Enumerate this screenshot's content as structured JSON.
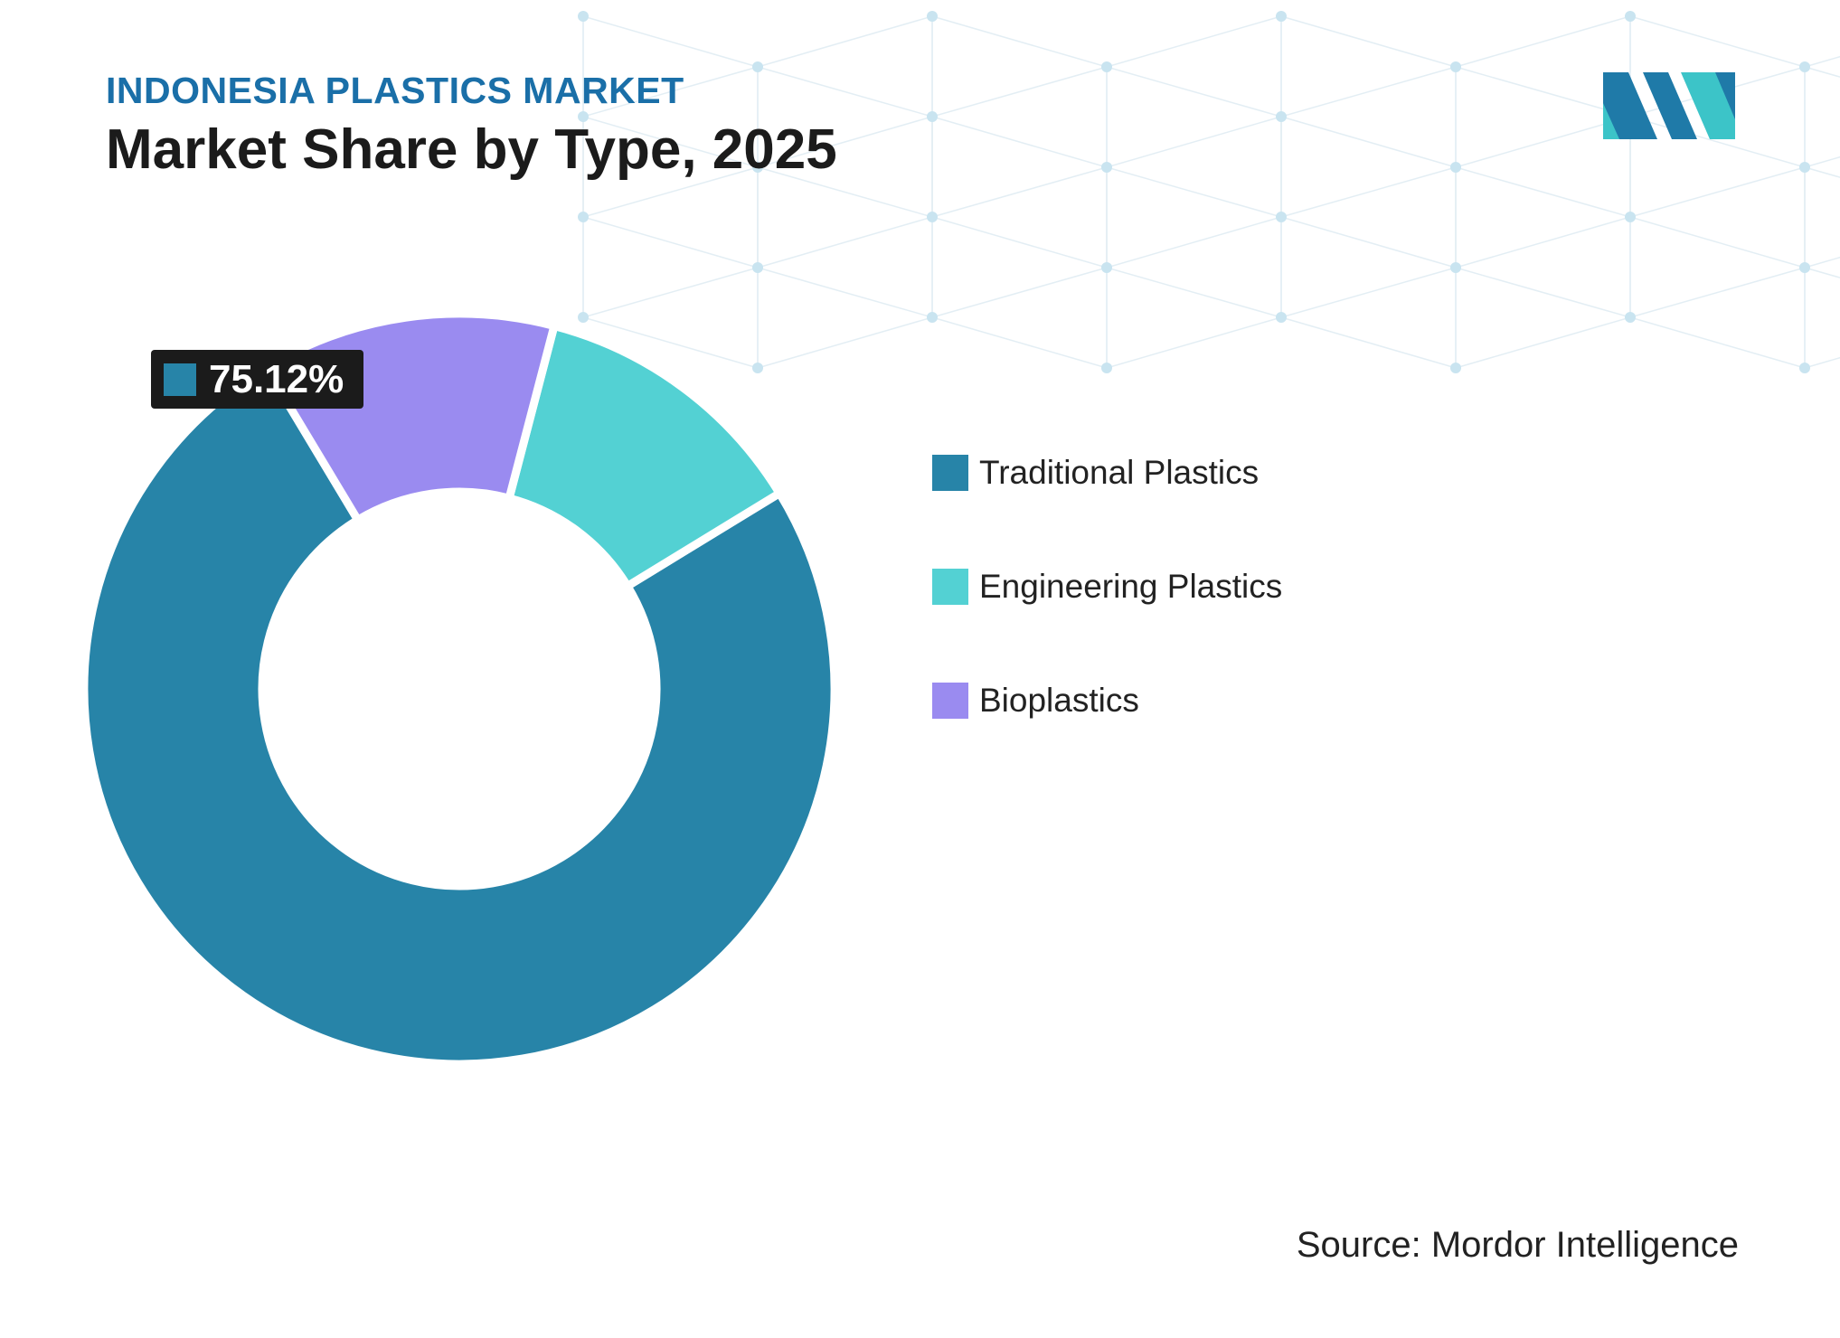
{
  "header": {
    "subtitle": "INDONESIA PLASTICS MARKET",
    "title": "Market Share by Type, 2025"
  },
  "chart_data": {
    "type": "pie",
    "variant": "donut",
    "title": "Market Share by Type, 2025",
    "categories": [
      "Traditional Plastics",
      "Engineering Plastics",
      "Bioplastics"
    ],
    "values": [
      75.12,
      12.2,
      12.68
    ],
    "unit": "%",
    "colors": [
      "#2784a8",
      "#53d1d3",
      "#9a8bf0"
    ],
    "start_angle_deg": 121,
    "direction": "counterclockwise",
    "legend_position": "right",
    "annotations": [
      {
        "series": "Traditional Plastics",
        "label": "75.12%"
      }
    ]
  },
  "legend": {
    "items": [
      {
        "label": "Traditional Plastics",
        "color": "#2784a8"
      },
      {
        "label": "Engineering Plastics",
        "color": "#53d1d3"
      },
      {
        "label": "Bioplastics",
        "color": "#9a8bf0"
      }
    ]
  },
  "callout": {
    "value": "75.12%",
    "color": "#2784a8"
  },
  "source": {
    "text": "Source: Mordor Intelligence"
  },
  "logo": {
    "icon": "mordor-intelligence-logo-icon",
    "colors": [
      "#1f7aa8",
      "#3cc4c8"
    ]
  }
}
